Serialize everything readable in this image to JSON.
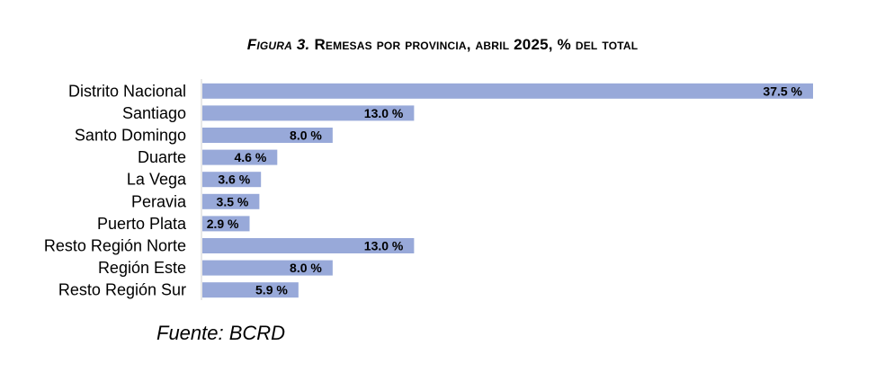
{
  "chart_data": {
    "type": "bar",
    "orientation": "horizontal",
    "title_prefix": "Figura 3.",
    "title_rest": "Remesas por provincia, abril 2025, % del total",
    "xlabel": "",
    "ylabel": "",
    "categories": [
      "Distrito Nacional",
      "Santiago",
      "Santo Domingo",
      "Duarte",
      "La Vega",
      "Peravia",
      "Puerto Plata",
      "Resto Región Norte",
      "Región Este",
      "Resto Región Sur"
    ],
    "values": [
      37.5,
      13.0,
      8.0,
      4.6,
      3.6,
      3.5,
      2.9,
      13.0,
      8.0,
      5.9
    ],
    "value_labels": [
      "37.5 %",
      "13.0 %",
      "8.0 %",
      "4.6 %",
      "3.6 %",
      "3.5 %",
      "2.9 %",
      "13.0 %",
      "8.0 %",
      "5.9 %"
    ],
    "xlim": [
      0,
      40
    ],
    "grid": false,
    "legend": "none",
    "bar_color": "#98a9d9",
    "axis_color": "#d0d0d0"
  },
  "source": "Fuente: BCRD"
}
